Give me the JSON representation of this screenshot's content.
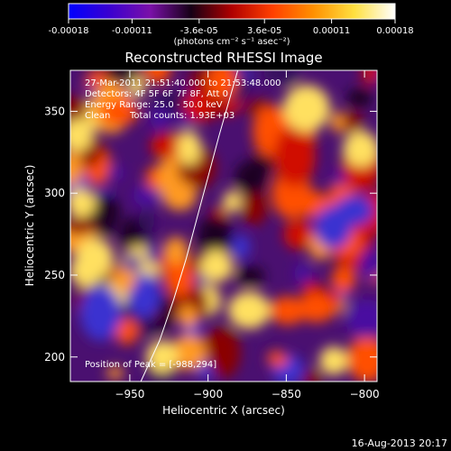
{
  "colorbar": {
    "ticks": [
      -0.00018,
      -0.00011,
      -3.6e-05,
      3.6e-05,
      0.00011,
      0.00018
    ],
    "tick_labels": [
      "-0.00018",
      "-0.00011",
      "-3.6e-05",
      "3.6e-05",
      "0.00011",
      "0.00018"
    ],
    "unit_label": "(photons cm⁻² s⁻¹ asec⁻²)",
    "colors": [
      "#0000ff",
      "#3a00d0",
      "#7a10a8",
      "#160016",
      "#b00000",
      "#ff4000",
      "#ff9000",
      "#ffe040",
      "#ffffff"
    ]
  },
  "chart_data": {
    "type": "heatmap",
    "title": "Reconstructed RHESSI Image",
    "xlabel": "Heliocentric X (arcsec)",
    "ylabel": "Heliocentric Y (arcsec)",
    "xlim": [
      -988,
      -792
    ],
    "ylim": [
      185,
      375
    ],
    "x_ticks": [
      -950,
      -900,
      -850,
      -800
    ],
    "y_ticks": [
      200,
      250,
      300,
      350
    ],
    "limb_curve": {
      "x": [
        -943,
        -931,
        -922,
        -914,
        -907,
        -900,
        -893,
        -887,
        -881
      ],
      "y": [
        185,
        210,
        235,
        260,
        285,
        310,
        335,
        355,
        375
      ]
    },
    "annotations": {
      "time_range": "27-Mar-2011 21:51:40.000 to 21:53:48.000",
      "detectors": "Detectors: 4F 5F 6F 7F 8F, Att 0",
      "energy": "Energy Range: 25.0 - 50.0 keV",
      "algorithm": "Clean",
      "counts": "Total counts: 1.93E+03",
      "peak": "Position of Peak = [-988,294]"
    }
  },
  "footer": {
    "date": "16-Aug-2013 20:17"
  }
}
